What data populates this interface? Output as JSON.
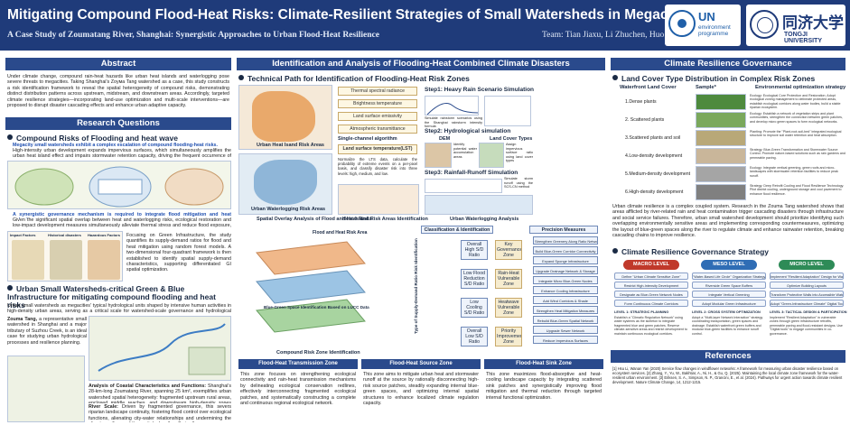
{
  "header": {
    "title": "Mitigating Compound Flood-Heat Risks: Climate-Resilient Strategies of Small Watersheds in Megacities",
    "subtitle": "A Case Study of Zoumatang River, Shanghai: Synergistic Approaches to Urban Flood-Heat Resilience",
    "authors": "Team: Tian Jiaxu, Li Zhuchen, Huo Yanxu",
    "logo_un": {
      "name": "UN",
      "sub": "environment programme"
    },
    "logo_tongji": {
      "name": "同济大学",
      "sub": "TONGJI UNIVERSITY"
    }
  },
  "abstract": {
    "heading": "Abstract",
    "text": "Under climate change, compound rain-heat hazards like urban heat islands and waterlogging pose severe threats to megacities. Taking Shanghai's Zoума Tang watershed as a case, this study constructs a risk identification framework to reveal the spatial heterogeneity of compound risks, demonstrating distinct distribution patterns across upstream, midstream, and downstream areas. Accordingly, targeted climate resilience strategies—incorporating land-use optimization and multi-scale interventions—are proposed to disrupt disaster cascading effects and enhance urban adaptive capacity."
  },
  "research_questions": {
    "heading": "Research Questions",
    "q1": {
      "title": "Compound Risks of Flooding and heat wave",
      "highlight": "Megacity small watersheds exhibit a complex escalation of compound flooding-heat risks.",
      "text": "High-intensity urban development expands impervious surfaces, which simultaneously amplifies the urban heat island effect and impairs stormwater retention capacity, driving the frequent occurrence of compound hazards."
    },
    "q2": {
      "highlight": "A synergistic governance mechanism is required to integrate flood mitigation and heat reduction.",
      "text": "Given the significant spatial overlap between heat and waterlogging risks, ecological restoration and low-impact development measures simultaneously alleviate thermal stress and reduce flood exposure, yielding dual adaptation benefits.",
      "panel_labels": [
        "Impact Factors",
        "Historical disasters",
        "Hazardous Factors"
      ],
      "side_text": "Focusing on Green Infrastructure, the study quantifies its supply-demand ratios for flood and heat mitigation using random forest models. A two-dimensional four-quadrant framework is then established to identify spatial supply-demand characteristics, supporting differentiated GI spatial optimization."
    },
    "q3": {
      "title": "Urban Small Watersheds-critical Green & Blue Infrastructure for mitigating compound flooding and heat risks",
      "text": "Urban small watersheds as megacities' typical hydrological units shaped by intensive human activities in high-density urban areas, serving as a critical scale for watershed-scale governance and hydrological resilience research.",
      "case_title": "Zouma Tang,",
      "case_text": "a representative small watershed in Shanghai and a major tributary of Suzhou Creek, is an ideal case for studying urban hydrological processes and resilience planning.",
      "analysis_title": "Analysis of Coastal Characteristics and Functions:",
      "analysis_text": "Shanghai's 28-km-long Zoumatang River, spanning 25 km², exemplifies urban watershed spatial heterogeneity: fragmented upstream rural areas, enclosed middle reaches, and downstream high-density zones dominated by vertical floodwalls.",
      "river_title": "River Scale:",
      "river_text": "Driven by fragmented governance, this severs riparian landscape continuity, fostering flood control over ecological functions, alienating city-water relationships and undermining the climate resilience of these vital urban \"capillaries.\""
    }
  },
  "middle": {
    "heading": "Identification and Analysis of Flooding-Heat Combined Climate Disasters",
    "technical_path": "Technical Path for Identification of Flooding-Heat Risk Zones",
    "heat_factors": [
      "Thermal spectral radiance",
      "Brightness temperature",
      "Land surface emissivity",
      "Atmospheric transmittance"
    ],
    "single_channel": "Single-channel algorithm",
    "lst": "Land surface temperature(LST)",
    "lst_note": "Normalize the LTS data, calculate the probability of extreme events on a per-pixel basis, and classify disaster risk into three levels: high, medium, and low.",
    "fig_heat_island": "Urban Heat Isand Risk Areas",
    "fig_waterlog": "Urban Waterlogging Risk Areas",
    "fig_spatial_overlay": "Spatial Overlay Analysis of Flood and Heat Risks",
    "fig_heat_identification": "Heat Island Risk Areas Identification",
    "fig_waterlog_analysis": "Urban Waterlogging Analysis",
    "step1": "Step1: Heavy Rain Scenario Simulation",
    "step1_note": "Simulate rainstorm scenarios using the Shanghai rainstorm intensity formula",
    "step2": "Step2: Hydrological simulation",
    "dem": "DEM",
    "land_cover_types": "Land Cover Types",
    "dem_note": "Identify potential water accumulation areas",
    "land_cover_note": "Assign impervious surface ratio using land cover types",
    "step3": "Step3: Rainfall-Runoff Simulation",
    "step3_note": "Simulate storm runoff using the SCS-CN method",
    "fig_flood_heat": "Flood and Heat Risk Area",
    "fig_blue_green": "Blue-Green Space Identification Based on LUCC Data",
    "fig_compound": "Compound Risk Zone Identification",
    "classification": "Classification & Identification",
    "precision": "Precision Measures",
    "quadrant_boxes": [
      "Overall High S/D Ratio",
      "Low Flood Reduction S/D Ratio",
      "Low Cooling S/D Ratio",
      "Overall Low S/D Ratio"
    ],
    "zone_boxes": [
      "Key Governance Zone",
      "Rain-Heat Vulnerable Zone",
      "Heatwave Vulnerable Zone",
      "Priority Improvement Zone"
    ],
    "axis_label": "Type of Supply-Demand Ratio Risk Identification",
    "precision_items": [
      "Strengthen Greenery Along Ratio Networks",
      "Build Blue-Green Corridor Connectivity",
      "Expand Sponge Infrastructure",
      "Upgrade Drainage Network & Storage",
      "Integrate Micro Blue-Green Nodes",
      "Enhance Cooling Infrastructure",
      "Add Wind Corridors & Shade",
      "Strengthen Heat Mitigation Measures",
      "Rebuild Blue-Green Spatial Network",
      "Upgrade Sewer Network",
      "Reduce Impervious Surfaces"
    ],
    "zones": [
      {
        "title": "Flood-Heat Transmission Zone",
        "text": "This zone focuses on strengthening ecological connectivity and rain-heat transmission mechanisms by delineating ecological conservation redlines, effectively interconnecting fragmented ecological patches, and systematically constructing a complete and continuous regional ecological network."
      },
      {
        "title": "Flood-Heat Source Zone",
        "text": "This zone aims to mitigate urban heat and stormwater runoff at the source by rationally disconnecting high-risk source patches, steadily expanding internal blue-green spaces, and optimizing internal spatial structures to enhance localized climate regulation capacity."
      },
      {
        "title": "Flood-Heat Sink Zone",
        "text": "This zone maximizes flood-absorptive and heat-cooling landscape capacity by integrating scattered sink patches and synergistically improving flood mitigation and thermal reduction through targeted internal functional optimization."
      }
    ]
  },
  "right": {
    "heading": "Climate Resilience Governance",
    "land_cover": "Land Cover Type Distribution in Complex Risk Zones",
    "table_headers": [
      "Waterfront Land Cover",
      "Sample*",
      "Environmental optimization strategy"
    ],
    "table_rows": [
      {
        "label": "1.Dense plants",
        "desc": "Ecology: Ecological Core Protection and Restoration. Adopt ecological zoning management to delineate protected areas, establish ecological corridors along water bodies, build a stable riparian ecosystem."
      },
      {
        "label": "2. Scattered plants",
        "desc": "Ecology: Establish a network of vegetation strips and plant communities, strengthen the connection between green patches, and develop micro green spaces to form ecological networks."
      },
      {
        "label": "3.Scattered plants and soil",
        "desc": "Planting: Promote the \"Plant-root-soil-bed\" integrated ecological structure to improve soil water retention and heat absorption."
      },
      {
        "label": "4.Low-density development",
        "desc": "Strategy: Blue-Green Transformation and Stormwater Source Control. Promote nature-based solutions such as rain gardens and permeable paving."
      },
      {
        "label": "5.Medium-density development",
        "desc": "Ecology: Integrate vertical greening, green roofs and micro-landscapes with stormwater retention facilities to reduce peak runoff."
      },
      {
        "label": "6.High-density development",
        "desc": "Strategy: Deep Retrofit Cooling and Flood Resilience Technology. Pilot district cooling, underground storage and cool pavement to enhance flood resilience."
      }
    ],
    "body": "Urban climate resilience is a complex coupled system. Research in the Zouma Tang watershed shows that areas afflicted by river-related rain and heat contamination trigger cascading disasters through infrastructure and social service failures. Therefore, urban small watershed development should prioritize identifying such overlapping environmentally sensitive areas and implementing corresponding countermeasures, optimizing the layout of blue-green spaces along the river to regulate climate and enhance rainwater retention, breaking cascading chains to improve resilience.",
    "governance_heading": "Climate Resilience Governance Strategy",
    "levels": [
      {
        "name": "MACRO LEVEL",
        "color": "#c0392b",
        "items": [
          "Define \"Urban Climate Sensitive Zone\"",
          "Restrict High-Intensity Development",
          "Designate as Blue-Green Network Nodes",
          "Form Continuous Climate Corridors"
        ]
      },
      {
        "name": "MESO LEVEL",
        "color": "#2f6db5",
        "items": [
          "\"Water-Based Life Circle\" Organization Strategy",
          "Riverside Green Space Buffers",
          "Integrate Vertical Greening",
          "Adopt Modular Green Infrastructure"
        ]
      },
      {
        "name": "MICRO LEVEL",
        "color": "#2e8b57",
        "items": [
          "Implement \"Resilient Adaptation\" Design for Waterfronts",
          "Optimize Building Layouts",
          "Transform Protective Walls into Accessible Water Spaces",
          "Adopt \"Green-Infrastructure Climate\" Digital Tools"
        ]
      }
    ],
    "level_texts": [
      {
        "title": "LEVEL 1: STRATEGIC PLANNING",
        "text": "Establish a \"Climatic Regulation Network\" using water systems as the skeleton to integrate fragmented blue and green patches. Reserve climate-sensitive areas and restrict development to maintain continuous ecological corridors."
      },
      {
        "title": "LEVEL 2: CROSS SYSTEM OPTIMIZATION",
        "text": "Adopt a \"Multi-layer Network Interaction\" strategy coordinating transportation, green spaces and drainage. Establish waterfront green buffers and modular blue-green facilities to enhance runoff control."
      },
      {
        "title": "LEVEL 3: TACTICAL DESIGN & PARTICIPATION",
        "text": "Implement \"Resilient Adaptation\" in vulnerable zones through green infrastructure retrofits, permeable paving and flood-resistant designs. Use \"Digital tools\" to engage communities in co-governance."
      }
    ],
    "references_heading": "References",
    "references": "[1] Hsu Li, Wanan Yan (2020) Service flow changes in windflower networks: A framework for measuring urban disaster resilience based on ecosystem services. [2] Zhang, Y., Yu, W., Bakhtiar, A., Ni, H., & Gu, Q. (2025). Maintaining the local climate zone framework for the water-resilient urban environment. [3] Eriksen, S. A., Simpson, N. P., Grancini, E., et al. (2024). Pathways for urgent action towards climate resilient development. Nature Climate Change, 14, 1212-1215."
  },
  "colors": {
    "header_bg": "#1f3b7a",
    "section_bg": "#2a4a8c",
    "highlight": "#1f4fb0"
  }
}
